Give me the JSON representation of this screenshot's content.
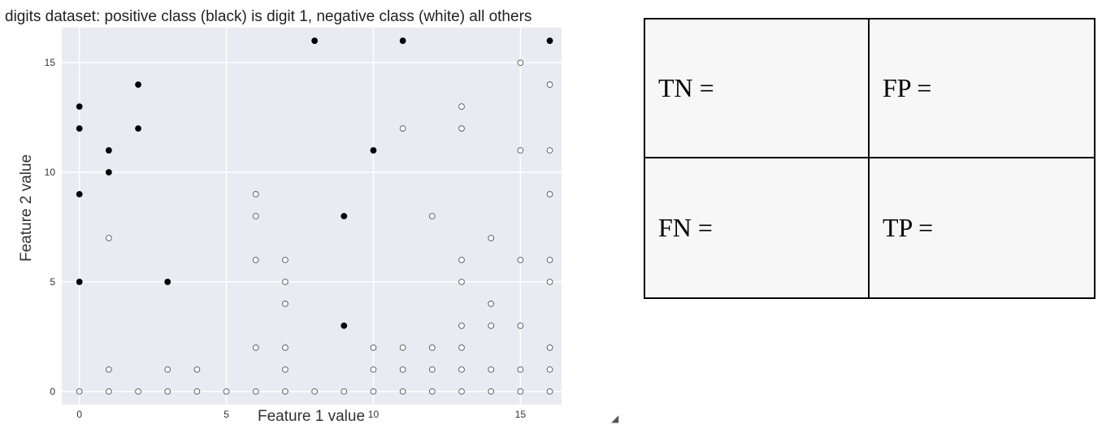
{
  "chart_data": {
    "type": "scatter",
    "title": "digits dataset: positive class (black) is digit 1, negative class (white) all others",
    "xlabel": "Feature 1 value",
    "ylabel": "Feature 2 value",
    "xlim": [
      -0.6,
      16.4
    ],
    "ylim": [
      -0.6,
      16.6
    ],
    "xticks": [
      0,
      5,
      10,
      15
    ],
    "yticks": [
      0,
      5,
      10,
      15
    ],
    "grid": true,
    "series": [
      {
        "class": "positive",
        "color": "#000000",
        "points": [
          [
            0,
            13
          ],
          [
            0,
            12
          ],
          [
            0,
            9
          ],
          [
            0,
            5
          ],
          [
            1,
            11
          ],
          [
            1,
            10
          ],
          [
            2,
            14
          ],
          [
            2,
            12
          ],
          [
            3,
            5
          ],
          [
            8,
            16
          ],
          [
            9,
            8
          ],
          [
            9,
            3
          ],
          [
            10,
            11
          ],
          [
            11,
            16
          ],
          [
            16,
            16
          ]
        ]
      },
      {
        "class": "negative",
        "color": "#ffffff",
        "points": [
          [
            0,
            0
          ],
          [
            1,
            0
          ],
          [
            2,
            0
          ],
          [
            3,
            0
          ],
          [
            4,
            0
          ],
          [
            5,
            0
          ],
          [
            6,
            0
          ],
          [
            7,
            0
          ],
          [
            8,
            0
          ],
          [
            9,
            0
          ],
          [
            10,
            0
          ],
          [
            11,
            0
          ],
          [
            12,
            0
          ],
          [
            13,
            0
          ],
          [
            14,
            0
          ],
          [
            15,
            0
          ],
          [
            16,
            0
          ],
          [
            1,
            7
          ],
          [
            1,
            1
          ],
          [
            3,
            1
          ],
          [
            4,
            1
          ],
          [
            6,
            9
          ],
          [
            6,
            8
          ],
          [
            6,
            6
          ],
          [
            6,
            2
          ],
          [
            7,
            6
          ],
          [
            7,
            5
          ],
          [
            7,
            4
          ],
          [
            7,
            2
          ],
          [
            7,
            1
          ],
          [
            10,
            2
          ],
          [
            10,
            1
          ],
          [
            11,
            12
          ],
          [
            11,
            2
          ],
          [
            11,
            1
          ],
          [
            12,
            8
          ],
          [
            12,
            2
          ],
          [
            12,
            1
          ],
          [
            13,
            13
          ],
          [
            13,
            12
          ],
          [
            13,
            6
          ],
          [
            13,
            5
          ],
          [
            13,
            3
          ],
          [
            13,
            2
          ],
          [
            13,
            1
          ],
          [
            14,
            7
          ],
          [
            14,
            4
          ],
          [
            14,
            3
          ],
          [
            14,
            1
          ],
          [
            15,
            15
          ],
          [
            15,
            11
          ],
          [
            15,
            6
          ],
          [
            15,
            3
          ],
          [
            15,
            1
          ],
          [
            16,
            14
          ],
          [
            16,
            11
          ],
          [
            16,
            9
          ],
          [
            16,
            6
          ],
          [
            16,
            5
          ],
          [
            16,
            2
          ],
          [
            16,
            1
          ]
        ]
      }
    ]
  },
  "matrix": {
    "cells": [
      [
        "TN =",
        "FP ="
      ],
      [
        "FN =",
        "TP ="
      ]
    ]
  },
  "colors": {
    "plot_bg": "#eaeaf2",
    "grid": "#ffffff"
  },
  "icons": {
    "resize_grip": "resize-grip-icon"
  }
}
